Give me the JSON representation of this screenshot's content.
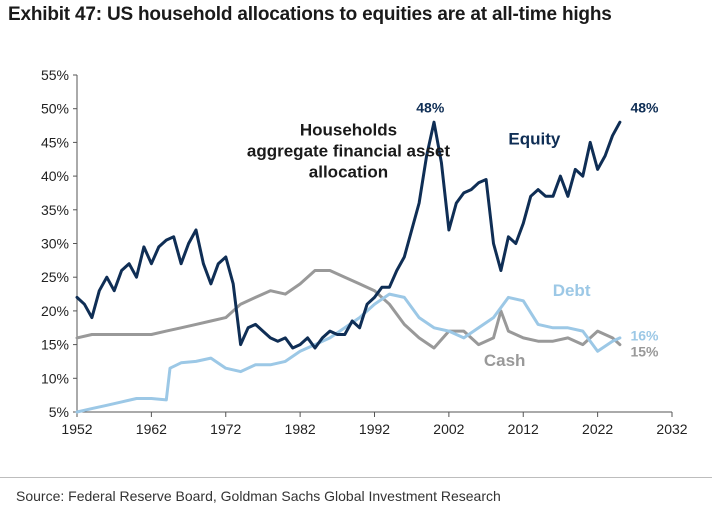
{
  "title": "Exhibit 47: US household allocations to equities are at all-time highs",
  "source": "Source: Federal Reserve Board, Goldman Sachs Global Investment Research",
  "colors": {
    "equity": "#0f2e55",
    "debt": "#9cc8e6",
    "cash": "#999999",
    "text": "#1a1a1a",
    "axis": "#555555"
  },
  "chart_data": {
    "type": "line",
    "title": "",
    "xlabel": "",
    "ylabel": "",
    "xlim": [
      1952,
      2032
    ],
    "ylim": [
      5,
      55
    ],
    "x_ticks": [
      1952,
      1962,
      1972,
      1982,
      1992,
      2002,
      2012,
      2022,
      2032
    ],
    "x_tick_labels": [
      "1952",
      "1962",
      "1972",
      "1982",
      "1992",
      "2002",
      "2012",
      "2022",
      "2032"
    ],
    "y_ticks": [
      5,
      10,
      15,
      20,
      25,
      30,
      35,
      40,
      45,
      50,
      55
    ],
    "y_tick_labels": [
      "5%",
      "10%",
      "15%",
      "20%",
      "25%",
      "30%",
      "35%",
      "40%",
      "45%",
      "50%",
      "55%"
    ],
    "grid": false,
    "legend": "none",
    "series": [
      {
        "name": "Equity",
        "points": [
          [
            1952,
            22
          ],
          [
            1953,
            21
          ],
          [
            1954,
            19
          ],
          [
            1955,
            23
          ],
          [
            1956,
            25
          ],
          [
            1957,
            23
          ],
          [
            1958,
            26
          ],
          [
            1959,
            27
          ],
          [
            1960,
            25
          ],
          [
            1961,
            29.5
          ],
          [
            1962,
            27
          ],
          [
            1963,
            29.5
          ],
          [
            1964,
            30.5
          ],
          [
            1965,
            31
          ],
          [
            1966,
            27
          ],
          [
            1967,
            30
          ],
          [
            1968,
            32
          ],
          [
            1969,
            27
          ],
          [
            1970,
            24
          ],
          [
            1971,
            27
          ],
          [
            1972,
            28
          ],
          [
            1973,
            24
          ],
          [
            1974,
            15
          ],
          [
            1975,
            17.5
          ],
          [
            1976,
            18
          ],
          [
            1977,
            17
          ],
          [
            1978,
            16
          ],
          [
            1979,
            15.5
          ],
          [
            1980,
            16
          ],
          [
            1981,
            14.5
          ],
          [
            1982,
            15
          ],
          [
            1983,
            16
          ],
          [
            1984,
            14.5
          ],
          [
            1985,
            16
          ],
          [
            1986,
            17
          ],
          [
            1987,
            16.5
          ],
          [
            1988,
            16.5
          ],
          [
            1989,
            18.5
          ],
          [
            1990,
            17.5
          ],
          [
            1991,
            21
          ],
          [
            1992,
            22
          ],
          [
            1993,
            23.5
          ],
          [
            1994,
            23.5
          ],
          [
            1995,
            26
          ],
          [
            1996,
            28
          ],
          [
            1997,
            32
          ],
          [
            1998,
            36
          ],
          [
            1999,
            43
          ],
          [
            2000,
            48
          ],
          [
            2001,
            42
          ],
          [
            2002,
            32
          ],
          [
            2003,
            36
          ],
          [
            2004,
            37.5
          ],
          [
            2005,
            38
          ],
          [
            2006,
            39
          ],
          [
            2007,
            39.5
          ],
          [
            2008,
            30
          ],
          [
            2009,
            26
          ],
          [
            2010,
            31
          ],
          [
            2011,
            30
          ],
          [
            2012,
            33
          ],
          [
            2013,
            37
          ],
          [
            2014,
            38
          ],
          [
            2015,
            37
          ],
          [
            2016,
            37
          ],
          [
            2017,
            40
          ],
          [
            2018,
            37
          ],
          [
            2019,
            41
          ],
          [
            2020,
            40
          ],
          [
            2021,
            45
          ],
          [
            2022,
            41
          ],
          [
            2023,
            43
          ],
          [
            2024,
            46
          ],
          [
            2025,
            48
          ]
        ]
      },
      {
        "name": "Debt",
        "points": [
          [
            1952,
            5
          ],
          [
            1954,
            5.5
          ],
          [
            1956,
            6
          ],
          [
            1958,
            6.5
          ],
          [
            1960,
            7
          ],
          [
            1962,
            7
          ],
          [
            1964,
            6.8
          ],
          [
            1964.5,
            11.5
          ],
          [
            1966,
            12.3
          ],
          [
            1968,
            12.5
          ],
          [
            1970,
            13
          ],
          [
            1972,
            11.5
          ],
          [
            1974,
            11
          ],
          [
            1976,
            12
          ],
          [
            1978,
            12
          ],
          [
            1980,
            12.5
          ],
          [
            1982,
            14
          ],
          [
            1984,
            15
          ],
          [
            1986,
            16
          ],
          [
            1988,
            17.5
          ],
          [
            1990,
            19
          ],
          [
            1992,
            21
          ],
          [
            1994,
            22.5
          ],
          [
            1996,
            22
          ],
          [
            1998,
            19
          ],
          [
            2000,
            17.5
          ],
          [
            2002,
            17
          ],
          [
            2004,
            16
          ],
          [
            2006,
            17.5
          ],
          [
            2008,
            19
          ],
          [
            2010,
            22
          ],
          [
            2012,
            21.5
          ],
          [
            2014,
            18
          ],
          [
            2016,
            17.5
          ],
          [
            2018,
            17.5
          ],
          [
            2020,
            17
          ],
          [
            2022,
            14
          ],
          [
            2024,
            15.5
          ],
          [
            2025,
            16
          ]
        ]
      },
      {
        "name": "Cash",
        "points": [
          [
            1952,
            16
          ],
          [
            1954,
            16.5
          ],
          [
            1956,
            16.5
          ],
          [
            1958,
            16.5
          ],
          [
            1960,
            16.5
          ],
          [
            1962,
            16.5
          ],
          [
            1964,
            17
          ],
          [
            1966,
            17.5
          ],
          [
            1968,
            18
          ],
          [
            1970,
            18.5
          ],
          [
            1972,
            19
          ],
          [
            1974,
            21
          ],
          [
            1976,
            22
          ],
          [
            1978,
            23
          ],
          [
            1980,
            22.5
          ],
          [
            1982,
            24
          ],
          [
            1984,
            26
          ],
          [
            1986,
            26
          ],
          [
            1988,
            25
          ],
          [
            1990,
            24
          ],
          [
            1992,
            23
          ],
          [
            1994,
            21
          ],
          [
            1996,
            18
          ],
          [
            1998,
            16
          ],
          [
            2000,
            14.5
          ],
          [
            2002,
            17
          ],
          [
            2004,
            17
          ],
          [
            2006,
            15
          ],
          [
            2008,
            16
          ],
          [
            2009,
            20
          ],
          [
            2010,
            17
          ],
          [
            2012,
            16
          ],
          [
            2014,
            15.5
          ],
          [
            2016,
            15.5
          ],
          [
            2018,
            16
          ],
          [
            2020,
            15
          ],
          [
            2022,
            17
          ],
          [
            2024,
            16
          ],
          [
            2025,
            15
          ]
        ]
      }
    ],
    "annotations": [
      {
        "id": "heading-1",
        "text": "Households",
        "x": 1988.5,
        "y": 46,
        "color": "text",
        "size": 17,
        "anchor": "middle"
      },
      {
        "id": "heading-2",
        "text": "aggregate financial asset",
        "x": 1988.5,
        "y": 42.9,
        "color": "text",
        "size": 17,
        "anchor": "middle"
      },
      {
        "id": "heading-3",
        "text": "allocation",
        "x": 1988.5,
        "y": 39.8,
        "color": "text",
        "size": 17,
        "anchor": "middle"
      },
      {
        "id": "equity-peak-2000",
        "text": "48%",
        "x": 1999.5,
        "y": 49.4,
        "color": "equity",
        "size": 14,
        "anchor": "middle"
      },
      {
        "id": "equity-label",
        "text": "Equity",
        "x": 2013.5,
        "y": 44.7,
        "color": "equity",
        "size": 17,
        "anchor": "middle"
      },
      {
        "id": "equity-end",
        "text": "48%",
        "x": 2028.3,
        "y": 49.4,
        "color": "equity",
        "size": 14,
        "anchor": "middle"
      },
      {
        "id": "debt-label",
        "text": "Debt",
        "x": 2018.5,
        "y": 22.2,
        "color": "debt",
        "size": 17,
        "anchor": "middle"
      },
      {
        "id": "debt-end",
        "text": "16%",
        "x": 2028.3,
        "y": 15.6,
        "color": "debt",
        "size": 14,
        "anchor": "middle"
      },
      {
        "id": "cash-label",
        "text": "Cash",
        "x": 2009.5,
        "y": 11.8,
        "color": "cash",
        "size": 17,
        "anchor": "middle"
      },
      {
        "id": "cash-end",
        "text": "15%",
        "x": 2028.3,
        "y": 13.2,
        "color": "cash",
        "size": 14,
        "anchor": "middle"
      }
    ]
  }
}
